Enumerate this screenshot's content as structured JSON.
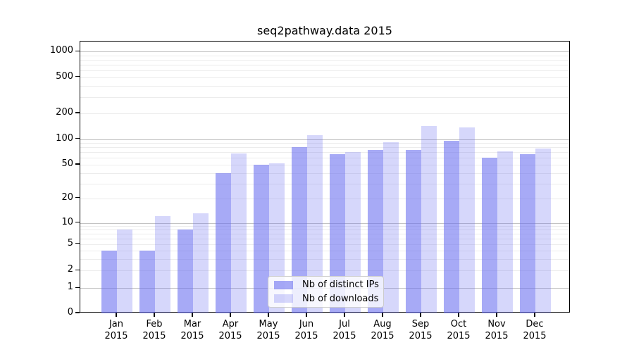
{
  "chart_data": {
    "type": "bar",
    "title": "seq2pathway.data 2015",
    "categories": [
      "Jan",
      "Feb",
      "Mar",
      "Apr",
      "May",
      "Jun",
      "Jul",
      "Aug",
      "Sep",
      "Oct",
      "Nov",
      "Dec"
    ],
    "x_year_label": "2015",
    "series": [
      {
        "name": "Nb of distinct IPs",
        "values": [
          4,
          4,
          8,
          40,
          50,
          81,
          66,
          74,
          74,
          95,
          60,
          67
        ],
        "color": "rgba(104,108,240,0.58)"
      },
      {
        "name": "Nb of downloads",
        "values": [
          8,
          12,
          13,
          68,
          52,
          112,
          71,
          93,
          142,
          136,
          72,
          77
        ],
        "color": "rgba(104,108,240,0.27)"
      }
    ],
    "y_tick_labels": [
      "0",
      "1",
      "2",
      "5",
      "10",
      "20",
      "50",
      "100",
      "200",
      "500",
      "1000"
    ],
    "y_tick_values": [
      0,
      1,
      2,
      5,
      10,
      20,
      50,
      100,
      200,
      500,
      1000
    ],
    "y_scale": "log-like (asinh), linear below 1",
    "ylim": [
      0,
      1400
    ],
    "xlabel": "",
    "ylabel": "",
    "grid": "horizontal major and minor gridlines",
    "legend_position": "lower center",
    "colors": {
      "bar_base": "#686cf0",
      "major_grid": "#c3c3c3",
      "minor_grid": "#ececec",
      "axis": "#000000",
      "legend_border": "#cccccc"
    }
  }
}
